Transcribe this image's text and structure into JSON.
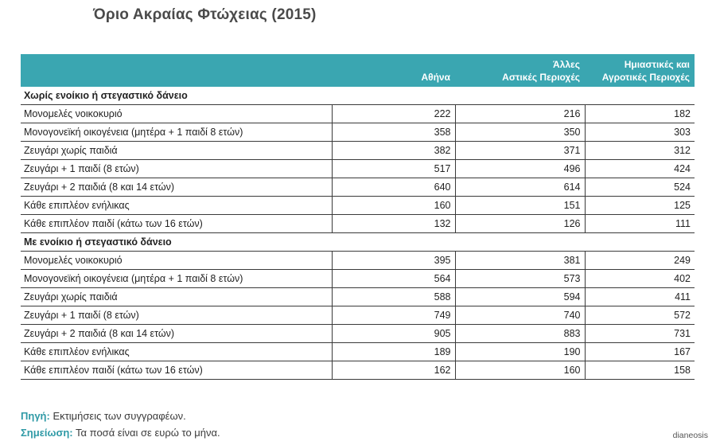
{
  "title": "Όριο Ακραίας Φτώχειας (2015)",
  "chart_data": {
    "type": "table",
    "columns": [
      {
        "key": "label",
        "line1": "",
        "line2": ""
      },
      {
        "key": "athens",
        "line1": "",
        "line2": "Αθήνα"
      },
      {
        "key": "urban",
        "line1": "Άλλες",
        "line2": "Αστικές Περιοχές"
      },
      {
        "key": "rural",
        "line1": "Ημιαστικές και",
        "line2": "Αγροτικές Περιοχές"
      }
    ],
    "sections": [
      {
        "heading": "Χωρίς ενοίκιο ή στεγαστικό δάνειο",
        "rows": [
          {
            "label": "Μονομελές νοικοκυριό",
            "values": [
              222,
              216,
              182
            ]
          },
          {
            "label": "Μονογονεϊκή οικογένεια (μητέρα + 1 παιδί 8 ετών)",
            "values": [
              358,
              350,
              303
            ]
          },
          {
            "label": "Ζευγάρι χωρίς παιδιά",
            "values": [
              382,
              371,
              312
            ]
          },
          {
            "label": "Ζευγάρι + 1 παιδί (8 ετών)",
            "values": [
              517,
              496,
              424
            ]
          },
          {
            "label": "Ζευγάρι + 2 παιδιά (8 και 14 ετών)",
            "values": [
              640,
              614,
              524
            ]
          },
          {
            "label": "Κάθε επιπλέον ενήλικας",
            "values": [
              160,
              151,
              125
            ]
          },
          {
            "label": "Κάθε επιπλέον παιδί (κάτω των 16 ετών)",
            "values": [
              132,
              126,
              111
            ]
          }
        ]
      },
      {
        "heading": "Με ενοίκιο ή στεγαστικό δάνειο",
        "rows": [
          {
            "label": "Μονομελές νοικοκυριό",
            "values": [
              395,
              381,
              249
            ]
          },
          {
            "label": "Μονογονεϊκή οικογένεια (μητέρα + 1 παιδί 8 ετών)",
            "values": [
              564,
              573,
              402
            ]
          },
          {
            "label": "Ζευγάρι χωρίς παιδιά",
            "values": [
              588,
              594,
              411
            ]
          },
          {
            "label": "Ζευγάρι + 1 παιδί (8 ετών)",
            "values": [
              749,
              740,
              572
            ]
          },
          {
            "label": "Ζευγάρι + 2 παιδιά (8 και 14 ετών)",
            "values": [
              905,
              883,
              731
            ]
          },
          {
            "label": "Κάθε επιπλέον ενήλικας",
            "values": [
              189,
              190,
              167
            ]
          },
          {
            "label": "Κάθε επιπλέον παιδί (κάτω των 16 ετών)",
            "values": [
              162,
              160,
              158
            ]
          }
        ]
      }
    ]
  },
  "notes": {
    "source_key": "Πηγή:",
    "source_text": "Εκτιμήσεις των συγγραφέων.",
    "note_key": "Σημείωση:",
    "note_text": "Τα ποσά είναι σε ευρώ το μήνα."
  },
  "watermark": "dianeosis",
  "colors": {
    "header_bg": "#3aa6b1",
    "accent_text": "#2f9aa6"
  }
}
